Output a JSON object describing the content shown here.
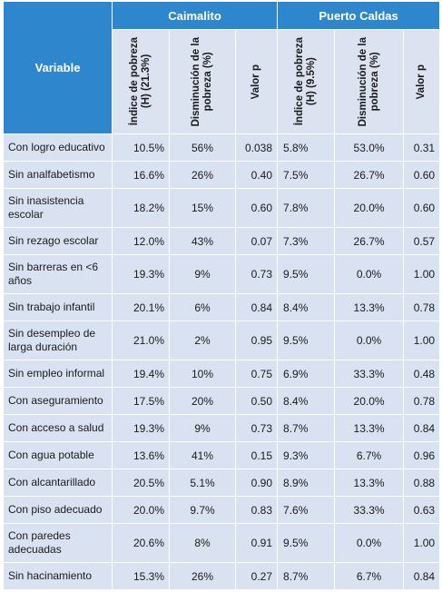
{
  "table": {
    "variable_header": "Variable",
    "groups": [
      "Caimalito",
      "Puerto Caldas"
    ],
    "sub_headers": [
      "Índice de pobreza\n(H) (21.3%)",
      "Disminución de la\npobreza (%)",
      "Valor p",
      "Índice de pobreza\n(H) (9.5%)",
      "Disminución de la\npobreza (%)",
      "Valor p"
    ],
    "rows": [
      {
        "variable": "Con logro educativo",
        "values": [
          "10.5%",
          "56%",
          "0.038",
          "5.8%",
          "53.0%",
          "0.31"
        ]
      },
      {
        "variable": "Sin analfabetismo",
        "values": [
          "16.6%",
          "26%",
          "0.40",
          "7.5%",
          "26.7%",
          "0.60"
        ]
      },
      {
        "variable": "Sin inasistencia escolar",
        "values": [
          "18.2%",
          "15%",
          "0.60",
          "7.8%",
          "20.0%",
          "0.60"
        ]
      },
      {
        "variable": "Sin rezago escolar",
        "values": [
          "12.0%",
          "43%",
          "0.07",
          "7.3%",
          "26.7%",
          "0.57"
        ]
      },
      {
        "variable": "Sin barreras en <6 años",
        "values": [
          "19.3%",
          "9%",
          "0.73",
          "9.5%",
          "0.0%",
          "1.00"
        ]
      },
      {
        "variable": "Sin trabajo infantil",
        "values": [
          "20.1%",
          "6%",
          "0.84",
          "8.4%",
          "13.3%",
          "0.78"
        ]
      },
      {
        "variable": "Sin desempleo de larga duración",
        "values": [
          "21.0%",
          "2%",
          "0.95",
          "9.5%",
          "0.0%",
          "1.00"
        ]
      },
      {
        "variable": "Sin empleo informal",
        "values": [
          "19.4%",
          "10%",
          "0.75",
          "6.9%",
          "33.3%",
          "0.48"
        ]
      },
      {
        "variable": "Con aseguramiento",
        "values": [
          "17.5%",
          "20%",
          "0.50",
          "8.4%",
          "20.0%",
          "0.78"
        ]
      },
      {
        "variable": "Con acceso a salud",
        "values": [
          "19.3%",
          "9%",
          "0.73",
          "8.7%",
          "13.3%",
          "0.84"
        ]
      },
      {
        "variable": "Con agua potable",
        "values": [
          "13.6%",
          "41%",
          "0.15",
          "9.3%",
          "6.7%",
          "0.96"
        ]
      },
      {
        "variable": "Con alcantarillado",
        "values": [
          "20.5%",
          "5.1%",
          "0.90",
          "8.9%",
          "13.3%",
          "0.88"
        ]
      },
      {
        "variable": "Con piso adecuado",
        "values": [
          "20.0%",
          "9.7%",
          "0.83",
          "7.6%",
          "33.3%",
          "0.63"
        ]
      },
      {
        "variable": "Con paredes adecuadas",
        "values": [
          "20.6%",
          "8%",
          "0.91",
          "9.5%",
          "0.0%",
          "1.00"
        ]
      },
      {
        "variable": "Sin hacinamiento",
        "values": [
          "15.3%",
          "26%",
          "0.27",
          "8.7%",
          "6.7%",
          "0.84"
        ]
      }
    ]
  },
  "colors": {
    "header_blue": "#2e86cd",
    "cell_light_blue": "#d9e2f1",
    "header_text": "#ffffff"
  }
}
